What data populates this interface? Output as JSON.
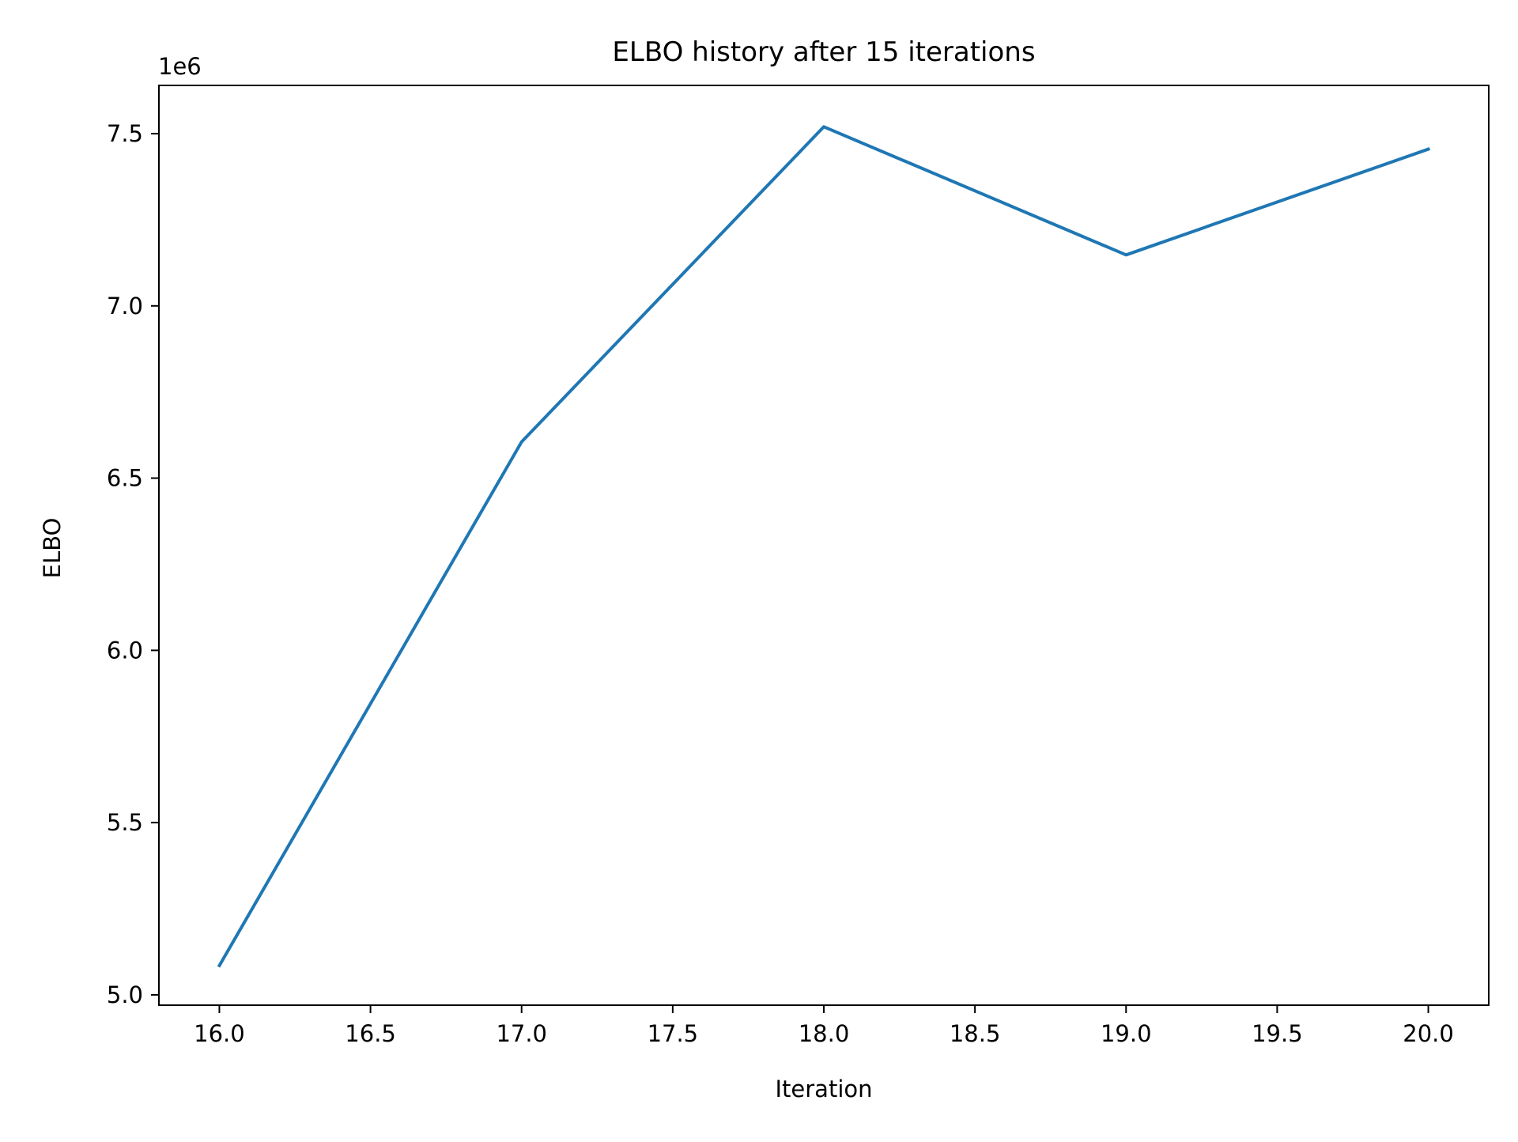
{
  "chart_data": {
    "type": "line",
    "title": "ELBO history after 15 iterations",
    "xlabel": "Iteration",
    "ylabel": "ELBO",
    "y_offset_label": "1e6",
    "xlim": [
      15.8,
      20.2
    ],
    "ylim": [
      4.97,
      7.64
    ],
    "x_ticks": [
      16.0,
      16.5,
      17.0,
      17.5,
      18.0,
      18.5,
      19.0,
      19.5,
      20.0
    ],
    "x_tick_labels": [
      "16.0",
      "16.5",
      "17.0",
      "17.5",
      "18.0",
      "18.5",
      "19.0",
      "19.5",
      "20.0"
    ],
    "y_ticks": [
      5.0,
      5.5,
      6.0,
      6.5,
      7.0,
      7.5
    ],
    "y_tick_labels": [
      "5.0",
      "5.5",
      "6.0",
      "6.5",
      "7.0",
      "7.5"
    ],
    "grid": false,
    "series": [
      {
        "color": "#1f77b4",
        "x": [
          16,
          17,
          18,
          19,
          20
        ],
        "y": [
          5.085,
          6.605,
          7.52,
          7.148,
          7.455
        ]
      }
    ]
  }
}
